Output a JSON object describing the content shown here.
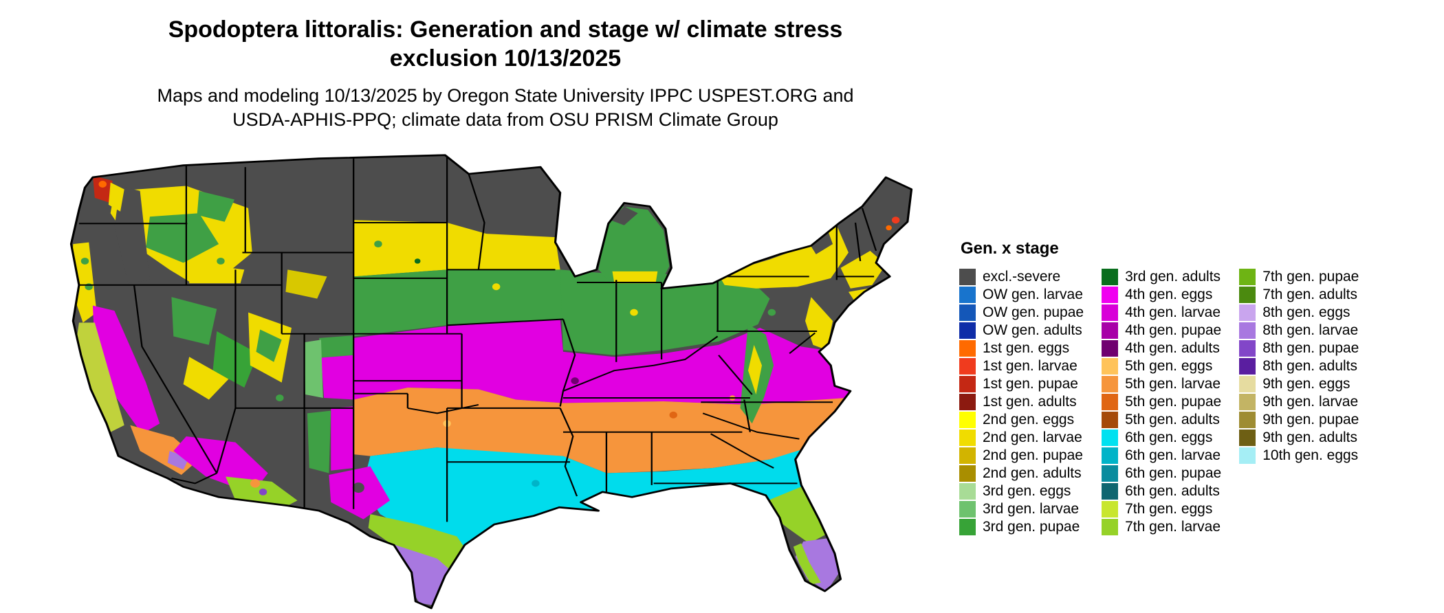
{
  "title": {
    "line1": "Spodoptera littoralis: Generation and stage w/ climate stress",
    "line2": "exclusion 10/13/2025"
  },
  "subtitle": {
    "line1": "Maps and modeling 10/13/2025 by Oregon State University IPPC USPEST.ORG and",
    "line2": "USDA-APHIS-PPQ; climate data from OSU PRISM Climate Group"
  },
  "legend": {
    "title": "Gen. x stage",
    "columns": [
      [
        {
          "label": "excl.-severe",
          "color": "#4d4d4d"
        },
        {
          "label": "OW gen. larvae",
          "color": "#1874CD"
        },
        {
          "label": "OW gen. pupae",
          "color": "#1457B8"
        },
        {
          "label": "OW gen. adults",
          "color": "#0F2DA8"
        },
        {
          "label": "1st gen. eggs",
          "color": "#FF6A00"
        },
        {
          "label": "1st gen. larvae",
          "color": "#F03B1E"
        },
        {
          "label": "1st gen. pupae",
          "color": "#C42814"
        },
        {
          "label": "1st gen. adults",
          "color": "#8C1A10"
        },
        {
          "label": "2nd gen. eggs",
          "color": "#FFFF00"
        },
        {
          "label": "2nd gen. larvae",
          "color": "#F0DC00"
        },
        {
          "label": "2nd gen. pupae",
          "color": "#D2B400"
        },
        {
          "label": "2nd gen. adults",
          "color": "#A98E00"
        },
        {
          "label": "3rd gen. eggs",
          "color": "#A8DC96"
        },
        {
          "label": "3rd gen. larvae",
          "color": "#6EC26E"
        },
        {
          "label": "3rd gen. pupae",
          "color": "#37A337"
        }
      ],
      [
        {
          "label": "3rd gen. adults",
          "color": "#0A6E1E"
        },
        {
          "label": "4th gen. eggs",
          "color": "#F000F0"
        },
        {
          "label": "4th gen. larvae",
          "color": "#D800D8"
        },
        {
          "label": "4th gen. pupae",
          "color": "#A800A8"
        },
        {
          "label": "4th gen. adults",
          "color": "#700070"
        },
        {
          "label": "5th gen. eggs",
          "color": "#FFC35A"
        },
        {
          "label": "5th gen. larvae",
          "color": "#F6953C"
        },
        {
          "label": "5th gen. pupae",
          "color": "#E06614"
        },
        {
          "label": "5th gen. adults",
          "color": "#A54A0A"
        },
        {
          "label": "6th gen. eggs",
          "color": "#00E1F0"
        },
        {
          "label": "6th gen. larvae",
          "color": "#00B4C8"
        },
        {
          "label": "6th gen. pupae",
          "color": "#0A8C9E"
        },
        {
          "label": "6th gen. adults",
          "color": "#0F6670"
        },
        {
          "label": "7th gen. eggs",
          "color": "#C8E62E"
        },
        {
          "label": "7th gen. larvae",
          "color": "#96D228"
        }
      ],
      [
        {
          "label": "7th gen. pupae",
          "color": "#6EB414"
        },
        {
          "label": "7th gen. adults",
          "color": "#4B8A0F"
        },
        {
          "label": "8th gen. eggs",
          "color": "#C9A5EE"
        },
        {
          "label": "8th gen. larvae",
          "color": "#A878E0"
        },
        {
          "label": "8th gen. pupae",
          "color": "#8246C8"
        },
        {
          "label": "8th gen. adults",
          "color": "#5A1EA0"
        },
        {
          "label": "9th gen. eggs",
          "color": "#E6DCA0"
        },
        {
          "label": "9th gen. larvae",
          "color": "#C3B464"
        },
        {
          "label": "9th gen. pupae",
          "color": "#9E8C32"
        },
        {
          "label": "9th gen. adults",
          "color": "#6E5F14"
        },
        {
          "label": "10th gen. eggs",
          "color": "#A5EEF5"
        }
      ]
    ]
  },
  "map": {
    "description": "Continental US raster map of Spodoptera littoralis generation and life stage with climate stress exclusion, 10/13/2025",
    "zones_north_to_south": [
      "excl.-severe (dark gray) — northern tier and mountain West",
      "2nd gen (yellows) — northern plains, New York, New England coast",
      "3rd gen (greens) — Nebraska–Iowa–Ohio Valley, lower Michigan, Appalachians",
      "4th gen (magentas) — Kansas through Missouri, Kentucky to Virginia; California Central Valley",
      "5th gen (oranges) — Oklahoma, Arkansas, Tennessee south through the Carolinas; desert Southwest",
      "6th gen (cyans) — central Texas, Louisiana, Gulf Coast, north Florida",
      "7th gen (yellow-greens) — south-central Texas, central Florida, low deserts",
      "8th gen (purples) — Rio Grande Valley of Texas, south Florida"
    ]
  }
}
